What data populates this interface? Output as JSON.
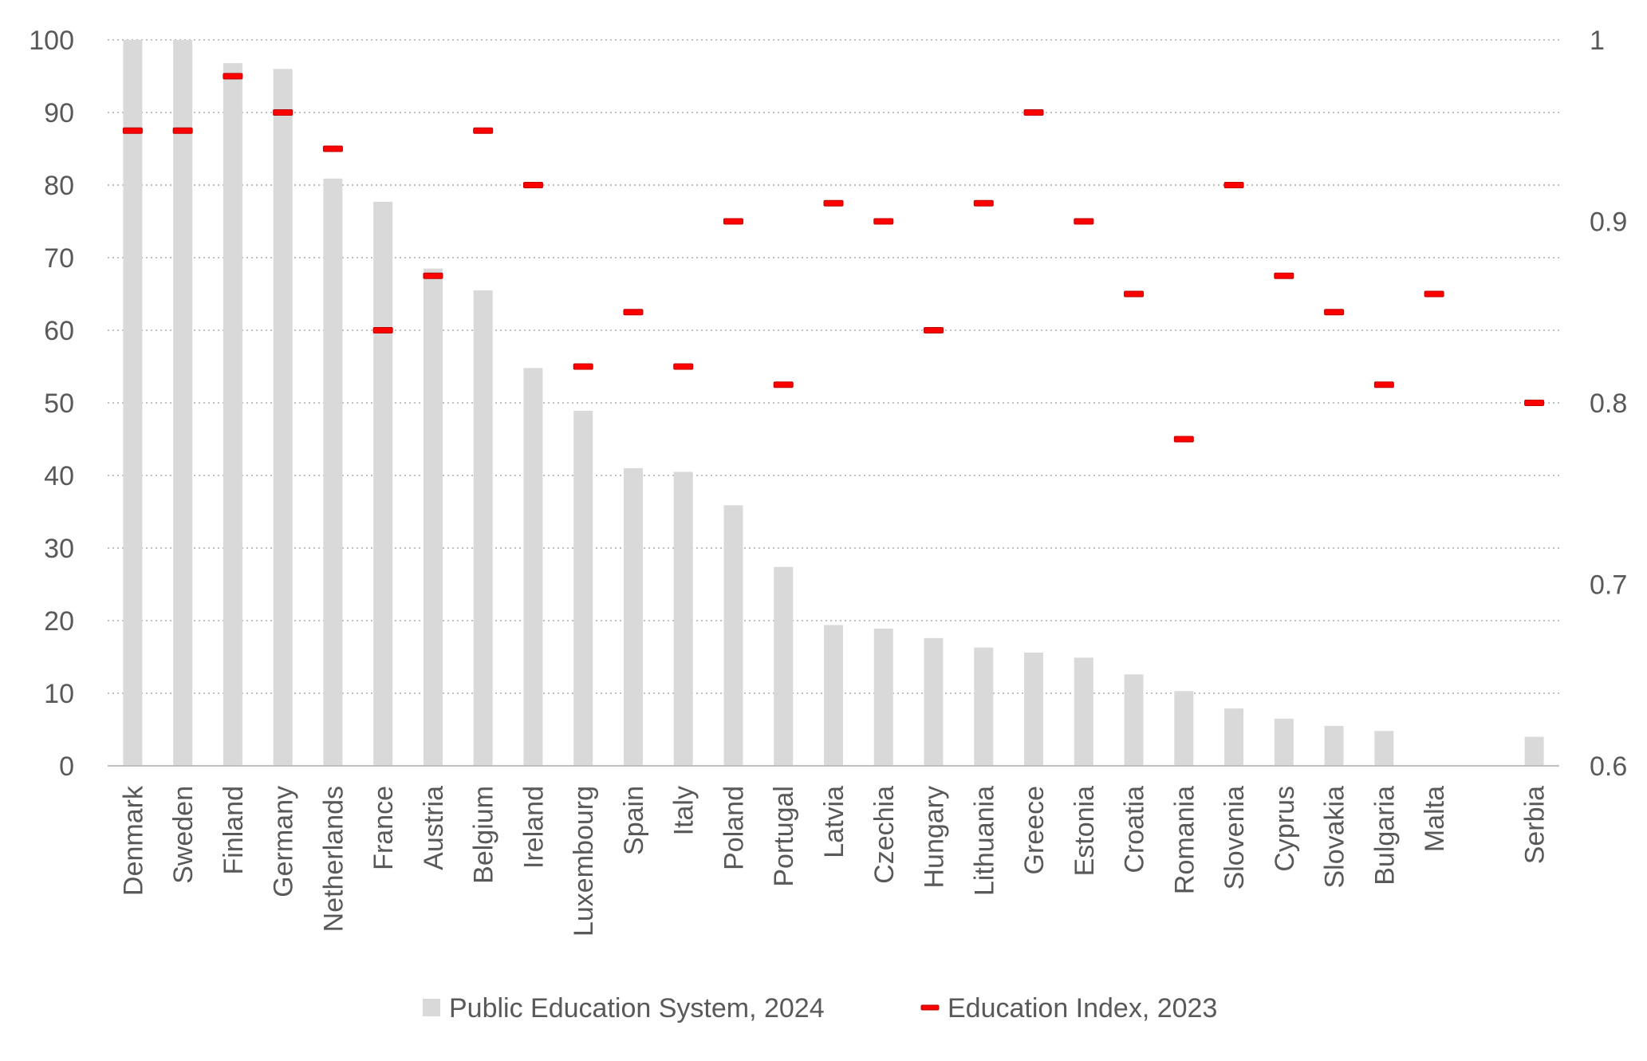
{
  "chart_data": {
    "type": "bar",
    "title": "",
    "xlabel": "",
    "ylabel": "",
    "categories": [
      "Denmark",
      "Sweden",
      "Finland",
      "Germany",
      "Netherlands",
      "France",
      "Austria",
      "Belgium",
      "Ireland",
      "Luxembourg",
      "Spain",
      "Italy",
      "Poland",
      "Portugal",
      "Latvia",
      "Czechia",
      "Hungary",
      "Lithuania",
      "Greece",
      "Estonia",
      "Croatia",
      "Romania",
      "Slovenia",
      "Cyprus",
      "Slovakia",
      "Bulgaria",
      "Malta",
      "",
      "Serbia"
    ],
    "series": [
      {
        "name": "Public Education System, 2024",
        "axis": "left",
        "mark": "bar",
        "color": "#d9d9d9",
        "values": [
          100,
          100,
          96.8,
          96,
          80.9,
          77.7,
          68.5,
          65.5,
          54.8,
          48.9,
          41,
          40.5,
          35.9,
          27.4,
          19.4,
          18.9,
          17.6,
          16.3,
          15.6,
          14.9,
          12.6,
          10.3,
          7.9,
          6.5,
          5.5,
          4.8,
          null,
          null,
          4
        ]
      },
      {
        "name": "Education Index, 2023",
        "axis": "right",
        "mark": "dash",
        "color": "#ff0000",
        "values": [
          0.95,
          0.95,
          0.98,
          0.96,
          0.94,
          0.84,
          0.87,
          0.95,
          0.92,
          0.82,
          0.85,
          0.82,
          0.9,
          0.81,
          0.91,
          0.9,
          0.84,
          0.91,
          0.96,
          0.9,
          0.86,
          0.78,
          0.92,
          0.87,
          0.85,
          0.81,
          0.86,
          null,
          0.8
        ]
      }
    ],
    "left_axis": {
      "ylim": [
        0,
        100
      ],
      "ticks": [
        "0",
        "10",
        "20",
        "30",
        "40",
        "50",
        "60",
        "70",
        "80",
        "90",
        "100"
      ]
    },
    "right_axis": {
      "ylim": [
        0.6,
        1.0
      ],
      "ticks": [
        "0.6",
        "0.7",
        "0.8",
        "0.9",
        "1"
      ]
    },
    "grid": "horizontal dotted",
    "legend": "bottom-center"
  }
}
